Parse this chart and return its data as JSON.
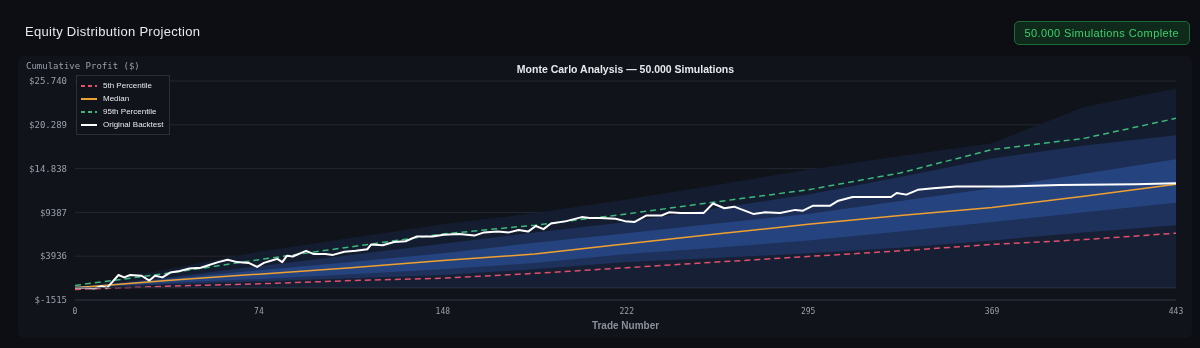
{
  "chart_data": {
    "type": "line",
    "title": "Equity Distribution Projection",
    "subtitle": "Monte Carlo Analysis — 50.000 Simulations",
    "annotations": [
      "50.000 Simulations Complete"
    ],
    "xlabel": "Trade Number",
    "ylabel": "Cumulative Profit ($)",
    "xlim": [
      0,
      443
    ],
    "xticks": [
      0,
      74,
      148,
      222,
      295,
      369,
      443
    ],
    "ylim": [
      -1515,
      25740
    ],
    "yticks": [
      {
        "value": -1515,
        "label": "$-1515"
      },
      {
        "value": 3936,
        "label": "$3936"
      },
      {
        "value": 9387,
        "label": "$9387"
      },
      {
        "value": 14838,
        "label": "$14.838"
      },
      {
        "value": 20289,
        "label": "$20.289"
      },
      {
        "value": 25740,
        "label": "$25.740"
      }
    ],
    "grid": "y",
    "legend": "top left",
    "marker": "none",
    "ref_lines": [
      {
        "axis": "y",
        "value": 0,
        "color": "#2a2f3a"
      }
    ],
    "series": [
      {
        "type": "area",
        "color": "#141d30",
        "x": [
          0,
          37,
          74,
          111,
          148,
          185,
          222,
          258,
          295,
          332,
          369,
          406,
          443
        ],
        "values": [
          0,
          2300,
          4500,
          6200,
          7900,
          9300,
          11000,
          12800,
          14700,
          16400,
          18000,
          22500,
          24800
        ]
      },
      {
        "type": "area",
        "color": "#1c2e55",
        "x": [
          0,
          37,
          74,
          111,
          148,
          185,
          222,
          258,
          295,
          332,
          369,
          406,
          443
        ],
        "values": [
          0,
          1300,
          2700,
          4100,
          5500,
          6900,
          8200,
          9900,
          11600,
          13800,
          16100,
          17700,
          19000
        ]
      },
      {
        "type": "area",
        "color": "#25447f",
        "x": [
          0,
          37,
          74,
          111,
          148,
          185,
          222,
          258,
          295,
          332,
          369,
          406,
          443
        ],
        "values": [
          0,
          1100,
          2200,
          3200,
          4300,
          5600,
          6800,
          8000,
          9200,
          10800,
          12400,
          14200,
          16000
        ]
      },
      {
        "type": "area",
        "color": "#1e315a",
        "x": [
          0,
          37,
          74,
          111,
          148,
          185,
          222,
          258,
          295,
          332,
          369,
          406,
          443
        ],
        "values": [
          0,
          600,
          1100,
          1700,
          2300,
          3100,
          4200,
          5000,
          5900,
          7000,
          8200,
          9400,
          10600
        ]
      },
      {
        "type": "area",
        "color": "#161f34",
        "x": [
          0,
          37,
          74,
          111,
          148,
          185,
          222,
          258,
          295,
          332,
          369,
          406,
          443
        ],
        "values": [
          0,
          400,
          800,
          1200,
          1600,
          2300,
          3200,
          3700,
          4300,
          5000,
          5900,
          6900,
          7800
        ]
      },
      {
        "type": "line",
        "name": "5th Percentile",
        "color": "#e0506a",
        "line_style": "dashed",
        "x": [
          0,
          37,
          74,
          111,
          148,
          185,
          222,
          258,
          295,
          332,
          369,
          406,
          443
        ],
        "values": [
          -200,
          200,
          500,
          900,
          1200,
          1800,
          2500,
          3200,
          3900,
          4600,
          5400,
          6000,
          6800
        ]
      },
      {
        "type": "line",
        "name": "Median",
        "color": "#f0a030",
        "line_style": "solid",
        "x": [
          0,
          37,
          74,
          111,
          148,
          185,
          222,
          258,
          295,
          332,
          369,
          406,
          443
        ],
        "values": [
          0,
          900,
          1700,
          2500,
          3400,
          4200,
          5500,
          6700,
          7900,
          9000,
          10000,
          11400,
          12900
        ]
      },
      {
        "type": "line",
        "name": "95th Percentile",
        "color": "#3cb878",
        "line_style": "dashed",
        "x": [
          0,
          37,
          74,
          111,
          148,
          185,
          222,
          258,
          295,
          332,
          369,
          406,
          443
        ],
        "values": [
          300,
          1800,
          3500,
          5100,
          6700,
          7800,
          9200,
          10700,
          12200,
          14300,
          17200,
          18600,
          21100
        ]
      },
      {
        "type": "line",
        "name": "Original Backtest",
        "color": "#ffffff",
        "line_style": "solid",
        "x": [
          0,
          5,
          7.5,
          10.6,
          12.9,
          17.5,
          19.8,
          22.2,
          26.8,
          29.9,
          32.2,
          35.2,
          38.3,
          42.2,
          46,
          50.6,
          53.7,
          57.6,
          61.4,
          65.3,
          69.9,
          73.3,
          76,
          79.1,
          81.4,
          83.4,
          85.3,
          87.6,
          93,
          96.1,
          100.7,
          103.8,
          108.4,
          113,
          117.6,
          119.2,
          123.8,
          128.4,
          133,
          137.6,
          143.8,
          148.4,
          154.6,
          160.7,
          164.6,
          170,
          174.6,
          178.5,
          182.3,
          185.4,
          188.5,
          191.5,
          197.7,
          203.9,
          207,
          211.3,
          217.5,
          221.3,
          225.2,
          229.8,
          236,
          239,
          243.6,
          252.9,
          256.7,
          261.3,
          265.2,
          272.9,
          277.5,
          283.7,
          289.8,
          292.9,
          296.8,
          303.7,
          306.8,
          312.9,
          328.3,
          330.6,
          334.5,
          339.1,
          345.3,
          354.5,
          373,
          396.1,
          426.9,
          443
        ],
        "values": [
          0,
          0,
          -100,
          200,
          0,
          1600,
          1300,
          1600,
          1500,
          900,
          1500,
          1300,
          1900,
          2100,
          2400,
          2500,
          2800,
          3200,
          3500,
          3200,
          3100,
          2600,
          3100,
          3400,
          3600,
          3200,
          4000,
          3900,
          4600,
          4200,
          4200,
          4100,
          4500,
          4600,
          4800,
          5400,
          5300,
          5700,
          5800,
          6400,
          6400,
          6600,
          6700,
          6500,
          6900,
          7000,
          6900,
          7200,
          7000,
          7700,
          7300,
          8000,
          8300,
          8800,
          8700,
          8700,
          8600,
          8300,
          8200,
          9000,
          9000,
          9400,
          9300,
          9300,
          10500,
          9900,
          10100,
          9200,
          9400,
          9300,
          9700,
          9600,
          10200,
          10200,
          10800,
          11300,
          11300,
          11800,
          11600,
          12200,
          12400,
          12600,
          12600,
          12800,
          12900,
          13000
        ]
      }
    ]
  }
}
